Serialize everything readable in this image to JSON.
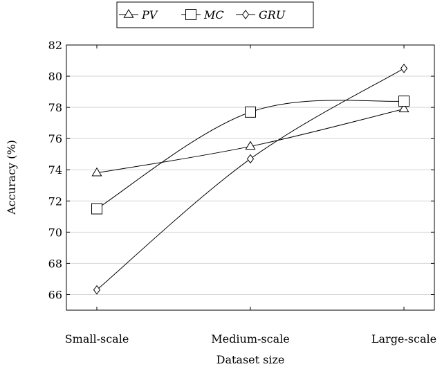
{
  "chart_data": {
    "type": "line",
    "categories": [
      "Small-scale",
      "Medium-scale",
      "Large-scale"
    ],
    "xlabel": "Dataset size",
    "ylabel": "Accuracy (%)",
    "ylim": [
      65,
      82
    ],
    "yticks": [
      66,
      68,
      70,
      72,
      74,
      76,
      78,
      80,
      82
    ],
    "grid": "horizontal",
    "legend_position": "top-center",
    "series": [
      {
        "name": "PV",
        "marker": "triangle",
        "values": [
          73.8,
          75.5,
          77.9
        ],
        "color": "#000000"
      },
      {
        "name": "MC",
        "marker": "square",
        "values": [
          71.5,
          77.7,
          78.4
        ],
        "color": "#000000"
      },
      {
        "name": "GRU",
        "marker": "diamond",
        "values": [
          66.3,
          74.7,
          80.5
        ],
        "color": "#000000"
      }
    ]
  }
}
